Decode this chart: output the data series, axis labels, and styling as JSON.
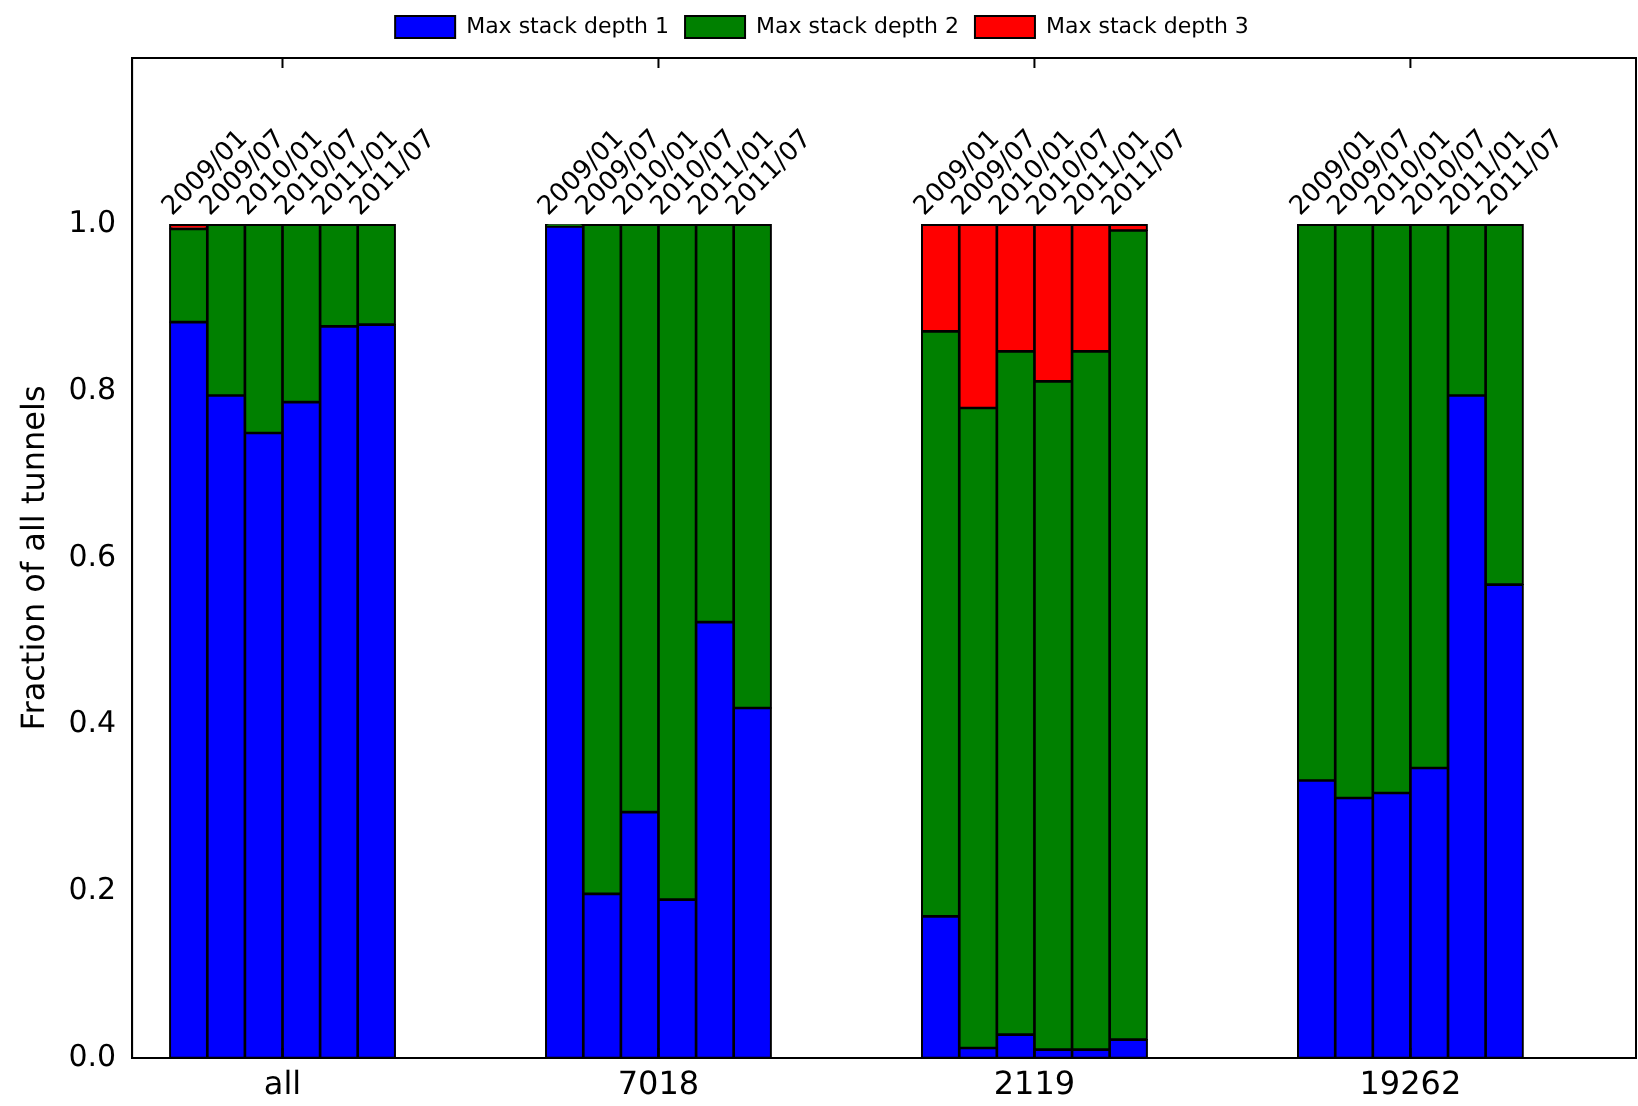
{
  "chart_data": {
    "type": "bar",
    "stacked": true,
    "ylabel": "Fraction of all tunnels",
    "categories": [
      null,
      "2009/01",
      "2009/07",
      "2010/01",
      "2010/07",
      "2011/01",
      "2011/07",
      null,
      null,
      null,
      null,
      "2009/01",
      "2009/07",
      "2010/01",
      "2010/07",
      "2011/01",
      "2011/07",
      null,
      null,
      null,
      null,
      "2009/01",
      "2009/07",
      "2010/01",
      "2010/07",
      "2011/01",
      "2011/07",
      null,
      null,
      null,
      null,
      "2009/01",
      "2009/07",
      "2010/01",
      "2010/07",
      "2011/01",
      "2011/07",
      null,
      null,
      null
    ],
    "series": [
      {
        "name": "Max stack depth 1",
        "color": "#0000ff",
        "values": [
          null,
          0.883,
          0.795,
          0.75,
          0.787,
          0.878,
          0.88,
          null,
          null,
          null,
          null,
          0.998,
          0.197,
          0.295,
          0.19,
          0.523,
          0.42,
          null,
          null,
          null,
          null,
          0.17,
          0.012,
          0.028,
          0.01,
          0.01,
          0.022,
          null,
          null,
          null,
          null,
          0.333,
          0.312,
          0.318,
          0.348,
          0.795,
          0.568,
          null,
          null,
          null
        ]
      },
      {
        "name": "Max stack depth 2",
        "color": "#008000",
        "values": [
          null,
          0.112,
          0.205,
          0.25,
          0.213,
          0.122,
          0.12,
          null,
          null,
          null,
          null,
          0.002,
          0.803,
          0.705,
          0.81,
          0.477,
          0.58,
          null,
          null,
          null,
          null,
          0.702,
          0.768,
          0.82,
          0.802,
          0.838,
          0.971,
          null,
          null,
          null,
          null,
          0.667,
          0.688,
          0.682,
          0.652,
          0.205,
          0.432,
          null,
          null,
          null
        ]
      },
      {
        "name": "Max stack depth 3",
        "color": "#ff0000",
        "values": [
          null,
          0.005,
          0,
          0,
          0,
          0,
          0,
          null,
          null,
          null,
          null,
          0,
          0,
          0,
          0,
          0,
          0,
          null,
          null,
          null,
          null,
          0.128,
          0.22,
          0.152,
          0.188,
          0.152,
          0.007,
          null,
          null,
          null,
          null,
          0,
          0,
          0,
          0,
          0,
          0,
          null,
          null,
          null
        ]
      }
    ],
    "annotations": [
      "all",
      "7018",
      "2119",
      "19262"
    ],
    "ylim": [
      0,
      1.2
    ],
    "yticks": [
      {
        "value": 0,
        "label": "0.0"
      },
      {
        "value": 0.2,
        "label": "0.2"
      },
      {
        "value": 0.4,
        "label": "0.4"
      },
      {
        "value": 0.6,
        "label": "0.6"
      },
      {
        "value": 0.8,
        "label": "0.8"
      },
      {
        "value": 1,
        "label": "1.0"
      }
    ],
    "grid": false,
    "legend": "top"
  }
}
